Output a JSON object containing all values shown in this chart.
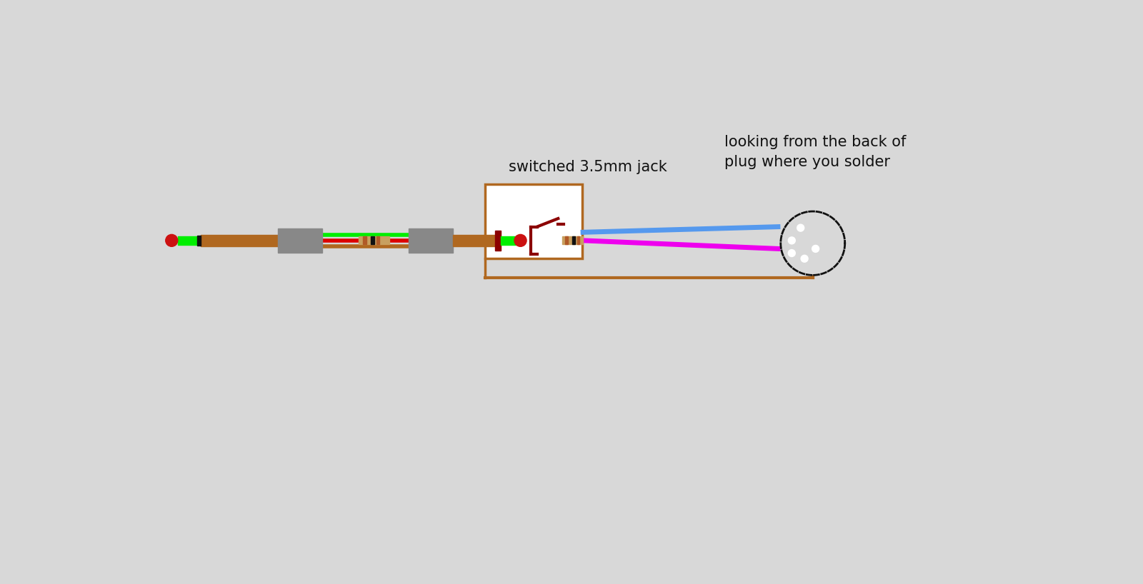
{
  "bg_color": "#d8d8d8",
  "label_switched": "switched 3.5mm jack",
  "label_looking": "looking from the back of\nplug where you solder",
  "label_font_size": 15,
  "green": "#00ee00",
  "red": "#dd0000",
  "brown_wire": "#b06820",
  "blue_wire": "#5599ee",
  "magenta_wire": "#ee00ee",
  "gray": "#888888",
  "dark_red": "#8b0000",
  "white": "#ffffff",
  "black": "#111111",
  "jack_tip_red": "#cc1111",
  "resistor_body": "#c8a060",
  "resistor_band_orange": "#b05a28",
  "resistor_band_black": "#111111",
  "plug_circle_bg": "#e0e0e0",
  "plug_border": "#333333"
}
